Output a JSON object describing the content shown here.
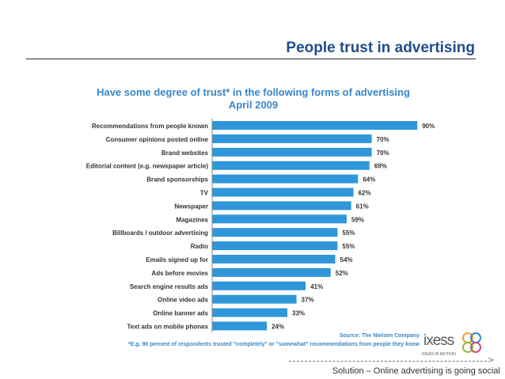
{
  "slide": {
    "title": "People trust in advertising",
    "footer": "Solution – Online advertising is going social"
  },
  "logo": {
    "text": "ixess",
    "tagline": "IDEAS IN MOTION"
  },
  "chart_data": {
    "type": "bar",
    "orientation": "horizontal",
    "title": "Have some degree of trust* in the following forms of advertising",
    "subtitle": "April 2009",
    "categories": [
      "Recommendations from people known",
      "Consumer opinions posted online",
      "Brand websites",
      "Editorial content (e.g. newspaper article)",
      "Brand sponsorships",
      "TV",
      "Newspaper",
      "Magazines",
      "Billboards / outdoor advertising",
      "Radio",
      "Emails signed up for",
      "Ads before movies",
      "Search engine results ads",
      "Online video ads",
      "Online banner ads",
      "Text ads on mobile phones"
    ],
    "values": [
      90,
      70,
      70,
      69,
      64,
      62,
      61,
      59,
      55,
      55,
      54,
      52,
      41,
      37,
      33,
      24
    ],
    "value_labels": [
      "90%",
      "70%",
      "70%",
      "69%",
      "64%",
      "62%",
      "61%",
      "59%",
      "55%",
      "55%",
      "54%",
      "52%",
      "41%",
      "37%",
      "33%",
      "24%"
    ],
    "xlim": [
      0,
      100
    ],
    "bar_color": "#2f97d9",
    "grid": false,
    "legend": "none",
    "source": "Source: The Nielsen Company",
    "footnote": "*E.g. 90 percent of respondents trusted \"completely\" or \"somewhat\" recommendations from people they know"
  }
}
